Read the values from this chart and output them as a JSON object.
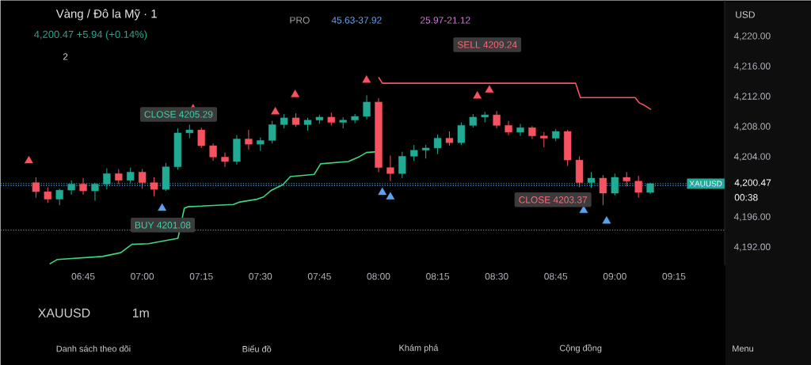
{
  "chart_data": {
    "type": "candlestick",
    "title": "Vàng / Đô la Mỹ · 1",
    "subtitle": "4,200.47 +5.94 (+0.14%)",
    "x": [
      6.55,
      6.6,
      6.65,
      6.7,
      6.75,
      6.8,
      6.85,
      6.9,
      6.95,
      7.0,
      7.05,
      7.1,
      7.15,
      7.2,
      7.25,
      7.3,
      7.35,
      7.4,
      7.45,
      7.5,
      7.55,
      7.6,
      7.65,
      7.7,
      7.75,
      7.8,
      7.85,
      7.9,
      7.95,
      8.0,
      8.05,
      8.1,
      8.15,
      8.2,
      8.25,
      8.3,
      8.35,
      8.4,
      8.45,
      8.5,
      8.55,
      8.6,
      8.65,
      8.7,
      8.75,
      8.8,
      8.85,
      8.9,
      8.95,
      9.0,
      9.05,
      9.1,
      9.15
    ],
    "ohlc": [
      [
        4200.6,
        4201.3,
        4198.6,
        4199.4
      ],
      [
        4199.4,
        4200.0,
        4197.9,
        4198.4
      ],
      [
        4198.4,
        4199.8,
        4197.6,
        4199.6
      ],
      [
        4199.6,
        4200.9,
        4199.0,
        4200.4
      ],
      [
        4200.4,
        4201.2,
        4199.0,
        4199.5
      ],
      [
        4199.5,
        4200.6,
        4198.2,
        4200.4
      ],
      [
        4200.4,
        4202.5,
        4199.7,
        4201.8
      ],
      [
        4201.8,
        4202.4,
        4200.4,
        4200.9
      ],
      [
        4200.9,
        4202.6,
        4200.5,
        4202.0
      ],
      [
        4202.0,
        4202.4,
        4199.8,
        4200.6
      ],
      [
        4200.6,
        4201.3,
        4198.8,
        4199.7
      ],
      [
        4199.7,
        4203.2,
        4199.5,
        4202.7
      ],
      [
        4202.7,
        4207.8,
        4202.3,
        4207.2
      ],
      [
        4207.2,
        4208.3,
        4206.5,
        4207.6
      ],
      [
        4207.6,
        4207.9,
        4205.2,
        4205.5
      ],
      [
        4205.5,
        4205.8,
        4203.5,
        4204.0
      ],
      [
        4204.0,
        4204.6,
        4202.7,
        4203.4
      ],
      [
        4203.4,
        4206.9,
        4203.0,
        4206.4
      ],
      [
        4206.4,
        4207.6,
        4205.0,
        4205.7
      ],
      [
        4205.7,
        4206.6,
        4204.8,
        4206.2
      ],
      [
        4206.2,
        4208.8,
        4205.8,
        4208.3
      ],
      [
        4208.3,
        4209.7,
        4207.8,
        4209.2
      ],
      [
        4209.2,
        4209.8,
        4208.0,
        4208.3
      ],
      [
        4208.3,
        4209.2,
        4207.5,
        4208.9
      ],
      [
        4208.9,
        4209.6,
        4208.4,
        4209.3
      ],
      [
        4209.3,
        4209.9,
        4208.2,
        4208.6
      ],
      [
        4208.6,
        4209.3,
        4207.8,
        4208.9
      ],
      [
        4208.9,
        4209.7,
        4208.5,
        4209.4
      ],
      [
        4209.4,
        4212.2,
        4209.0,
        4211.3
      ],
      [
        4211.3,
        4211.8,
        4202.0,
        4202.6
      ],
      [
        4202.6,
        4204.2,
        4200.8,
        4201.8
      ],
      [
        4201.8,
        4204.7,
        4201.2,
        4204.1
      ],
      [
        4204.1,
        4205.6,
        4203.5,
        4204.9
      ],
      [
        4204.9,
        4205.6,
        4203.8,
        4205.2
      ],
      [
        4205.2,
        4207.0,
        4204.4,
        4206.5
      ],
      [
        4206.5,
        4207.4,
        4205.5,
        4205.9
      ],
      [
        4205.9,
        4208.6,
        4205.6,
        4208.2
      ],
      [
        4208.2,
        4209.7,
        4207.9,
        4209.3
      ],
      [
        4209.3,
        4210.0,
        4208.6,
        4209.6
      ],
      [
        4209.6,
        4210.1,
        4207.8,
        4208.2
      ],
      [
        4208.2,
        4208.8,
        4206.9,
        4207.3
      ],
      [
        4207.3,
        4208.4,
        4206.8,
        4207.9
      ],
      [
        4207.9,
        4208.1,
        4206.4,
        4206.8
      ],
      [
        4206.8,
        4207.3,
        4205.3,
        4206.5
      ],
      [
        4206.5,
        4207.7,
        4206.1,
        4207.4
      ],
      [
        4207.4,
        4207.6,
        4202.8,
        4203.6
      ],
      [
        4203.6,
        4204.1,
        4200.0,
        4200.6
      ],
      [
        4200.6,
        4202.0,
        4199.9,
        4201.2
      ],
      [
        4201.2,
        4201.6,
        4197.6,
        4199.2
      ],
      [
        4199.2,
        4201.8,
        4198.9,
        4201.3
      ],
      [
        4201.3,
        4202.0,
        4200.1,
        4200.8
      ],
      [
        4200.8,
        4201.5,
        4198.6,
        4199.3
      ],
      [
        4199.3,
        4200.6,
        4199.1,
        4200.47
      ]
    ],
    "series": [
      {
        "type": "line",
        "color": "#3fd77f",
        "marker": "none",
        "x": [
          6.608,
          6.641,
          6.832,
          6.909,
          6.956,
          7.027,
          7.151,
          7.178,
          7.195,
          7.386,
          7.409,
          7.486,
          7.513,
          7.547,
          7.594,
          7.627,
          7.728,
          7.755,
          7.872,
          7.916,
          7.949,
          7.993
        ],
        "values": [
          4189.8,
          4190.4,
          4190.8,
          4191.3,
          4192.4,
          4192.5,
          4193.2,
          4197.2,
          4197.4,
          4197.7,
          4198.0,
          4198.4,
          4198.7,
          4199.6,
          4200.3,
          4201.4,
          4201.7,
          4203.1,
          4203.4,
          4204.0,
          4204.6,
          4204.7
        ]
      },
      {
        "type": "line",
        "color": "#f7525f",
        "marker": "none",
        "x": [
          8.0,
          8.016,
          8.834,
          8.854,
          9.086,
          9.103,
          9.123,
          9.153
        ],
        "values": [
          4214.6,
          4213.8,
          4213.8,
          4211.9,
          4211.9,
          4211.2,
          4210.9,
          4210.3
        ]
      },
      {
        "type": "scatter",
        "color": "#f7525f",
        "marker": "triangle",
        "x": [
          6.52,
          7.215,
          7.563,
          7.647,
          7.949,
          8.418,
          8.469
        ],
        "values": [
          4203.5,
          4210.4,
          4210.0,
          4212.3,
          4214.2,
          4212.1,
          4212.9
        ]
      },
      {
        "type": "scatter",
        "color": "#5ba3f0",
        "marker": "triangle",
        "x": [
          7.084,
          8.016,
          8.05,
          8.868,
          8.965
        ],
        "values": [
          4197.2,
          4199.3,
          4198.7,
          4196.9,
          4195.5
        ]
      }
    ],
    "xlim": [
      6.4,
      9.465
    ],
    "ylim": [
      4189.6,
      4224.8
    ],
    "xticks": [
      {
        "value": 6.75,
        "label": "06:45"
      },
      {
        "value": 7.0,
        "label": "07:00"
      },
      {
        "value": 7.25,
        "label": "07:15"
      },
      {
        "value": 7.5,
        "label": "07:30"
      },
      {
        "value": 7.75,
        "label": "07:45"
      },
      {
        "value": 8.0,
        "label": "08:00"
      },
      {
        "value": 8.25,
        "label": "08:15"
      },
      {
        "value": 8.5,
        "label": "08:30"
      },
      {
        "value": 8.75,
        "label": "08:45"
      },
      {
        "value": 9.0,
        "label": "09:00"
      },
      {
        "value": 9.25,
        "label": "09:15"
      }
    ],
    "yticks": [
      {
        "value": 4192,
        "label": "4,192.00"
      },
      {
        "value": 4196,
        "label": "4,196.00"
      },
      {
        "value": 4204,
        "label": "4,204.00"
      },
      {
        "value": 4208,
        "label": "4,208.00"
      },
      {
        "value": 4212,
        "label": "4,212.00"
      },
      {
        "value": 4216,
        "label": "4,216.00"
      },
      {
        "value": 4220,
        "label": "4,220.00"
      }
    ],
    "ref_lines": [
      {
        "axis": "y",
        "value": 4200.47,
        "label": "XAUUSD",
        "color": "#22ab94",
        "line_style": "dotted"
      },
      {
        "axis": "y",
        "value": 4200.2,
        "color": "#5b8def",
        "line_style": "dotted"
      },
      {
        "axis": "y",
        "value": 4194.3,
        "color": "#808080",
        "line_style": "dotted"
      }
    ],
    "annotations": [
      "CLOSE 4205.29",
      "BUY 4201.08",
      "SELL 4209.24",
      "CLOSE 4203.37",
      "PRO",
      "45.63-37.92",
      "25.97-21.12",
      "USD",
      "2",
      "4,200.47",
      "00:38",
      "XAUUSD",
      "1m",
      "Danh sách theo dõi",
      "Biểu đồ",
      "Khám phá",
      "Cộng đồng",
      "Menu"
    ]
  }
}
